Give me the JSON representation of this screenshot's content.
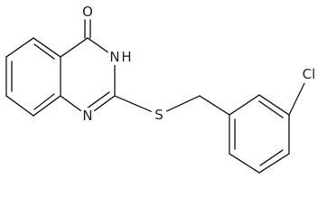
{
  "atoms": {
    "oxygen": "O",
    "n3": "N",
    "n3_h": "H",
    "n1": "N",
    "sulfur": "S",
    "chlorine": "Cl"
  }
}
